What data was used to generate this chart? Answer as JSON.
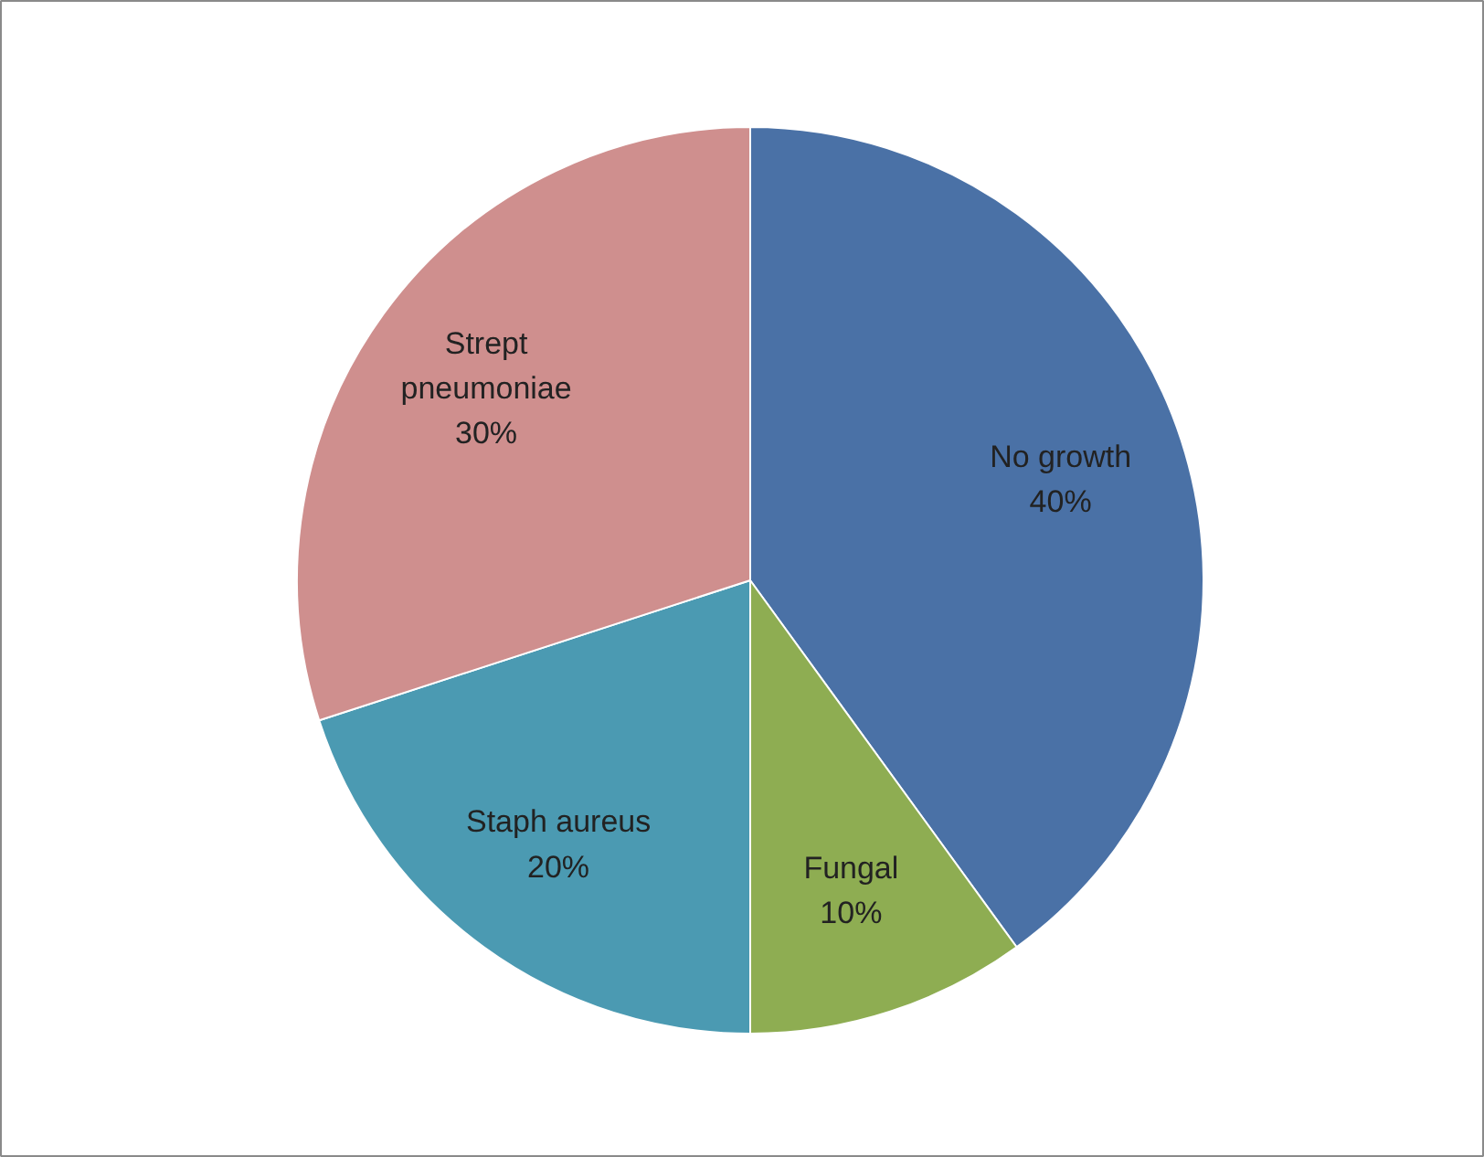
{
  "chart_data": {
    "type": "pie",
    "categories": [
      "No growth",
      "Fungal",
      "Staph aureus",
      "Strept pneumoniae"
    ],
    "values": [
      40,
      10,
      20,
      30
    ],
    "colors": [
      "#4a71a6",
      "#8ead52",
      "#4b9ab2",
      "#cf8f8e"
    ],
    "value_labels": [
      "40%",
      "10%",
      "20%",
      "30%"
    ]
  }
}
